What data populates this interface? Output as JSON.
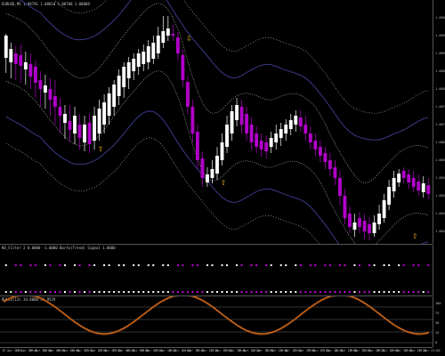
{
  "main": {
    "header": "EURUSD,M5 1.08791 1.08810 1.08788 1.08808",
    "price_ticks": [
      "1.0900",
      "1.0895",
      "1.0890",
      "1.0885",
      "1.0880",
      "1.0875",
      "1.0870",
      "1.0865",
      "1.0860",
      "1.0855",
      "1.0850",
      "1.0845",
      "1.0840"
    ],
    "candles": [
      [
        65,
        40,
        38,
        82,
        "bull"
      ],
      [
        70,
        55,
        48,
        88,
        "bull"
      ],
      [
        72,
        60,
        52,
        90,
        "bear"
      ],
      [
        74,
        62,
        50,
        93,
        "bear"
      ],
      [
        78,
        70,
        58,
        95,
        "bull"
      ],
      [
        86,
        72,
        60,
        100,
        "bear"
      ],
      [
        93,
        75,
        68,
        110,
        "bear"
      ],
      [
        100,
        90,
        80,
        120,
        "bear"
      ],
      [
        104,
        96,
        84,
        122,
        "bull"
      ],
      [
        112,
        100,
        88,
        130,
        "bear"
      ],
      [
        120,
        108,
        90,
        140,
        "bear"
      ],
      [
        130,
        120,
        110,
        150,
        "bear"
      ],
      [
        138,
        128,
        118,
        156,
        "bull"
      ],
      [
        146,
        136,
        118,
        160,
        "bear"
      ],
      [
        150,
        130,
        120,
        162,
        "bull"
      ],
      [
        155,
        140,
        128,
        168,
        "bear"
      ],
      [
        160,
        140,
        130,
        170,
        "bull"
      ],
      [
        162,
        138,
        128,
        172,
        "bear"
      ],
      [
        158,
        130,
        120,
        168,
        "bull"
      ],
      [
        150,
        122,
        112,
        158,
        "bull"
      ],
      [
        140,
        115,
        106,
        150,
        "bull"
      ],
      [
        130,
        105,
        98,
        140,
        "bull"
      ],
      [
        120,
        95,
        90,
        130,
        "bull"
      ],
      [
        108,
        85,
        78,
        118,
        "bull"
      ],
      [
        98,
        75,
        70,
        110,
        "bull"
      ],
      [
        88,
        70,
        64,
        100,
        "bull"
      ],
      [
        80,
        66,
        60,
        90,
        "bull"
      ],
      [
        75,
        60,
        55,
        84,
        "bull"
      ],
      [
        72,
        58,
        50,
        80,
        "bull"
      ],
      [
        70,
        52,
        45,
        78,
        "bull"
      ],
      [
        66,
        48,
        40,
        72,
        "bull"
      ],
      [
        60,
        40,
        30,
        66,
        "bull"
      ],
      [
        48,
        35,
        18,
        54,
        "bull"
      ],
      [
        40,
        32,
        18,
        46,
        "bull"
      ],
      [
        38,
        40,
        28,
        46,
        "bear"
      ],
      [
        42,
        60,
        36,
        68,
        "bear"
      ],
      [
        62,
        90,
        56,
        98,
        "bear"
      ],
      [
        92,
        120,
        86,
        128,
        "bear"
      ],
      [
        120,
        150,
        112,
        160,
        "bear"
      ],
      [
        148,
        180,
        140,
        190,
        "bear"
      ],
      [
        178,
        200,
        170,
        210,
        "bear"
      ],
      [
        196,
        205,
        188,
        210,
        "bull"
      ],
      [
        190,
        200,
        180,
        206,
        "bull"
      ],
      [
        175,
        195,
        165,
        202,
        "bull"
      ],
      [
        160,
        180,
        150,
        186,
        "bull"
      ],
      [
        140,
        165,
        130,
        172,
        "bull"
      ],
      [
        125,
        150,
        118,
        158,
        "bull"
      ],
      [
        118,
        135,
        110,
        142,
        "bull"
      ],
      [
        120,
        140,
        112,
        150,
        "bear"
      ],
      [
        128,
        150,
        120,
        158,
        "bear"
      ],
      [
        140,
        160,
        132,
        168,
        "bear"
      ],
      [
        150,
        165,
        142,
        172,
        "bear"
      ],
      [
        158,
        168,
        150,
        176,
        "bear"
      ],
      [
        160,
        170,
        152,
        178,
        "bear"
      ],
      [
        155,
        165,
        148,
        172,
        "bull"
      ],
      [
        150,
        160,
        140,
        168,
        "bull"
      ],
      [
        145,
        155,
        138,
        164,
        "bull"
      ],
      [
        140,
        150,
        134,
        158,
        "bull"
      ],
      [
        135,
        145,
        128,
        152,
        "bull"
      ],
      [
        130,
        140,
        124,
        148,
        "bull"
      ],
      [
        132,
        142,
        124,
        148,
        "bear"
      ],
      [
        140,
        150,
        130,
        158,
        "bear"
      ],
      [
        150,
        160,
        142,
        168,
        "bear"
      ],
      [
        158,
        168,
        150,
        176,
        "bear"
      ],
      [
        165,
        175,
        158,
        182,
        "bear"
      ],
      [
        172,
        182,
        165,
        190,
        "bear"
      ],
      [
        180,
        190,
        172,
        198,
        "bear"
      ],
      [
        188,
        200,
        180,
        208,
        "bear"
      ],
      [
        200,
        220,
        192,
        230,
        "bear"
      ],
      [
        220,
        245,
        212,
        252,
        "bear"
      ],
      [
        240,
        255,
        232,
        262,
        "bear"
      ],
      [
        250,
        258,
        240,
        266,
        "bull"
      ],
      [
        245,
        255,
        238,
        262,
        "bear"
      ],
      [
        248,
        260,
        240,
        268,
        "bear"
      ],
      [
        252,
        262,
        244,
        270,
        "bear"
      ],
      [
        250,
        262,
        242,
        266,
        "bull"
      ],
      [
        240,
        252,
        230,
        258,
        "bull"
      ],
      [
        225,
        245,
        218,
        250,
        "bull"
      ],
      [
        210,
        230,
        202,
        236,
        "bull"
      ],
      [
        200,
        215,
        192,
        222,
        "bull"
      ],
      [
        195,
        205,
        190,
        210,
        "bull"
      ],
      [
        192,
        200,
        188,
        206,
        "bear"
      ],
      [
        196,
        205,
        190,
        212,
        "bear"
      ],
      [
        200,
        210,
        192,
        216,
        "bear"
      ],
      [
        204,
        214,
        196,
        220,
        "bear"
      ],
      [
        206,
        216,
        198,
        222,
        "bull"
      ],
      [
        208,
        218,
        200,
        224,
        "bear"
      ]
    ]
  },
  "indicator1": {
    "header": "KD_Filter 2 0.0000 -1.0000 Barto(Trend) Signal 1.0000"
  },
  "indicator2": {
    "header": "BULLS(13) 34.8008 35.9529"
  },
  "indicator2_ticks": [
    "100",
    "75",
    "50",
    "25",
    "0"
  ],
  "time_labels": [
    "19 Apr 2024",
    "19 Apr 03:40",
    "19 Apr 04:20",
    "19 Apr 05:00",
    "19 Apr 05:40",
    "19 Apr 06:20",
    "19 Apr 07:00",
    "19 Apr 07:40",
    "19 Apr 08:20",
    "19 Apr 09:00",
    "19 Apr 09:40",
    "19 Apr 10:20",
    "19 Apr 11:00",
    "19 Apr 11:40",
    "19 Apr 12:20",
    "19 Apr 13:00",
    "19 Apr 13:40",
    "19 Apr 14:20",
    "19 Apr 15:00",
    "19 Apr 15:40",
    "19 Apr 16:20",
    "19 Apr 17:00",
    "19 Apr 17:40",
    "19 Apr 18:20",
    "19 Apr 19:00",
    "19 Apr 19:40",
    "19 Apr 20:20",
    "19 Apr 21:00",
    "19 Apr 21:40",
    "19 Apr 22:20",
    "19 Apr 23:00"
  ],
  "colors": {
    "bull": "#ffffff",
    "bear": "#b100c9",
    "band": "#3a3a8a",
    "band2": "#cfcfcf",
    "osc": "#d06a1a"
  }
}
